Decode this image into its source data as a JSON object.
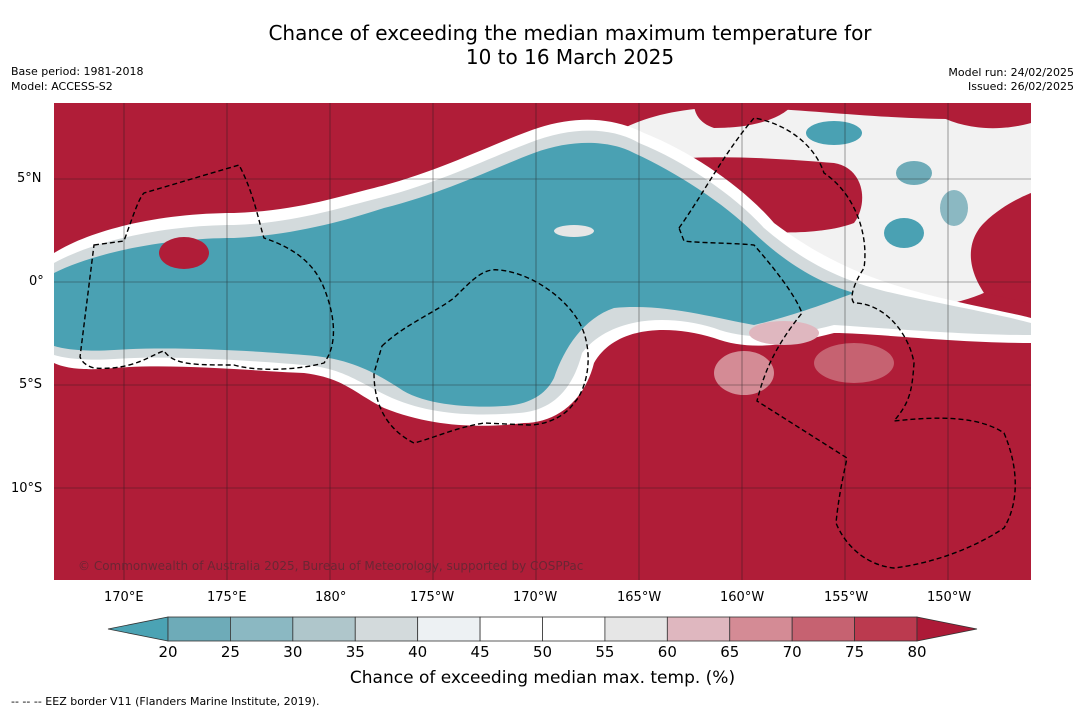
{
  "title": {
    "line1": "Chance of exceeding the median maximum temperature for",
    "line2": "10 to 16 March 2025"
  },
  "meta_left": {
    "base_period": "Base period: 1981-2018",
    "model": "Model: ACCESS-S2"
  },
  "meta_right": {
    "model_run": "Model run: 24/02/2025",
    "issued": "Issued: 26/02/2025"
  },
  "map": {
    "lat_labels": [
      "5°N",
      "0°",
      "5°S",
      "10°S"
    ],
    "lon_labels": [
      "170°E",
      "175°E",
      "180°",
      "175°W",
      "170°W",
      "165°W",
      "160°W",
      "155°W",
      "150°W"
    ],
    "copyright": "© Commonwealth of Australia 2025, Bureau of Meteorology, supported by COSPPac",
    "colors": {
      "high": "#b01d38",
      "low": "#4aa1b3",
      "neutral": "#ffffff"
    }
  },
  "colorbar": {
    "ticks": [
      "20",
      "25",
      "30",
      "35",
      "40",
      "45",
      "50",
      "55",
      "60",
      "65",
      "70",
      "75",
      "80"
    ],
    "colors": [
      "#4ba3b4",
      "#6eabb8",
      "#8bb8c2",
      "#afc6cb",
      "#d3dadc",
      "#edf1f3",
      "#ffffff",
      "#ffffff",
      "#e6e6e6",
      "#dfb7bf",
      "#d48b95",
      "#c66271",
      "#bb3a4f",
      "#ad1a37"
    ],
    "title": "Chance of exceeding median max. temp. (%)"
  },
  "footnote": "-- -- -- EEZ border V11 (Flanders Marine Institute, 2019)."
}
